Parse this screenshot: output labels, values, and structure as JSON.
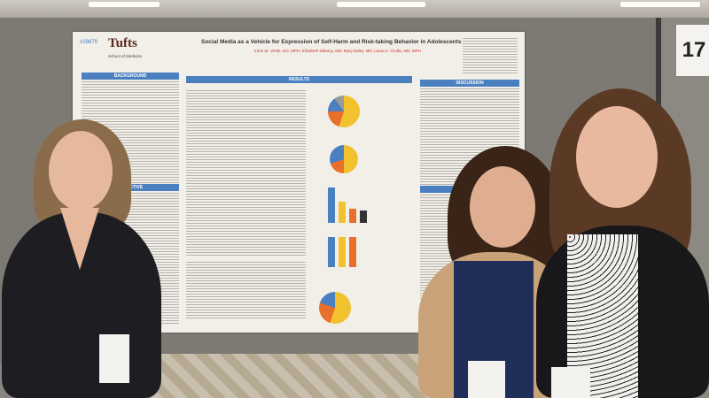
{
  "sign": {
    "number": "17"
  },
  "poster": {
    "number": "#29679",
    "logo": "Tufts",
    "school": "School of Medicine",
    "title": "Social Media as a Vehicle for Expression of Self-Harm and Risk-taking Behavior in Adolescents",
    "authors": "Irene M. Verde, DO, MPH; Elizabeth Killeavy, MD; Mary Daley, MD; Laura K. Grubb, MD, MPH",
    "sections": {
      "background": "BACKGROUND",
      "objective": "OBJECTIVE",
      "results": "RESULTS",
      "discussion": "DISCUSSION",
      "references": "REFERENCES"
    }
  },
  "colors": {
    "accent": "#4a7fc0"
  }
}
